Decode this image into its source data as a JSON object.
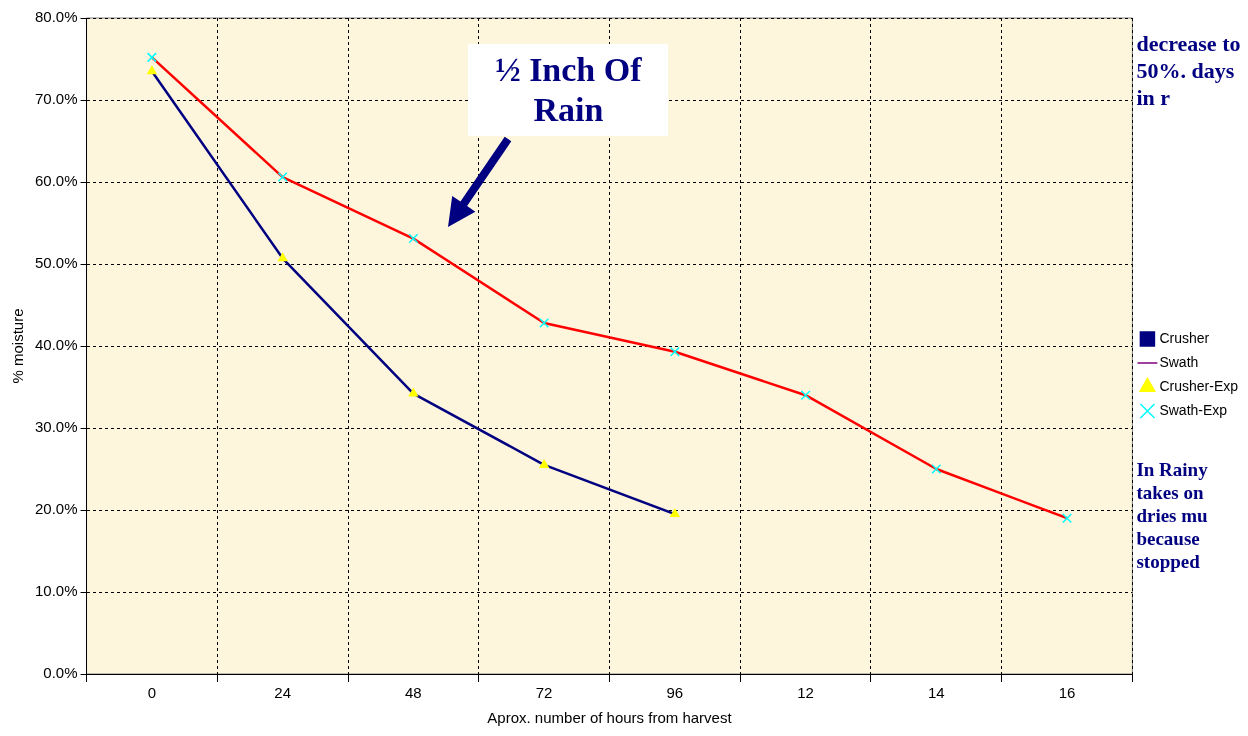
{
  "chart_data": {
    "type": "line",
    "xlabel": "Aprox. number of hours from harvest",
    "ylabel": "% moisture",
    "categories": [
      "0",
      "24",
      "48",
      "72",
      "96",
      "12",
      "14",
      "16"
    ],
    "ylim": [
      0,
      80
    ],
    "yticks": [
      {
        "value": 0,
        "label": "0.0%"
      },
      {
        "value": 10,
        "label": "10.0%"
      },
      {
        "value": 20,
        "label": "20.0%"
      },
      {
        "value": 30,
        "label": "30.0%"
      },
      {
        "value": 40,
        "label": "40.0%"
      },
      {
        "value": 50,
        "label": "50.0%"
      },
      {
        "value": 60,
        "label": "60.0%"
      },
      {
        "value": 70,
        "label": "70.0%"
      },
      {
        "value": 80,
        "label": "80.0%"
      }
    ],
    "grid": true,
    "legend": "right",
    "series": [
      {
        "name": "Crusher",
        "color": "#000080",
        "marker": "square",
        "values": [
          null,
          null,
          null,
          null,
          null,
          null,
          null,
          null
        ]
      },
      {
        "name": "Swath",
        "color": "#800080",
        "marker": "none",
        "values": [
          null,
          null,
          null,
          null,
          null,
          null,
          null,
          null
        ]
      },
      {
        "name": "Crusher-Exp",
        "color": "#000080",
        "marker": "triangle",
        "values": [
          73.5,
          50.7,
          34.2,
          25.5,
          19.5,
          null,
          null,
          null
        ]
      },
      {
        "name": "Swath-Exp",
        "color": "#ff0000",
        "marker": "cross",
        "values": [
          75.2,
          60.6,
          53.1,
          42.8,
          39.3,
          34.0,
          25.0,
          19.0
        ]
      }
    ],
    "annotations": [
      "½ Inch Of Rain",
      "decrease to 50%. days in r",
      "In Rainy takes on dries mu because stopped"
    ]
  }
}
